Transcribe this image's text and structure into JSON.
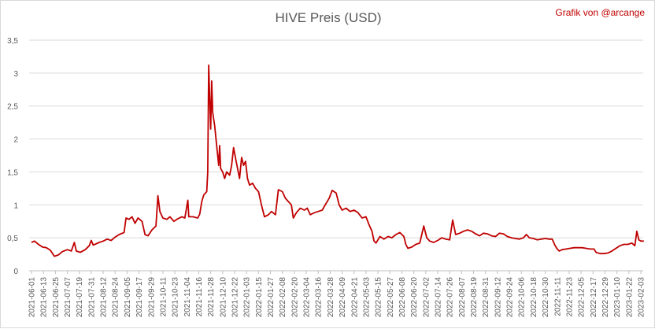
{
  "chart_data": {
    "type": "line",
    "title": "HIVE Preis (USD)",
    "credit": "Grafik von @arcange",
    "xlabel": "",
    "ylabel": "",
    "ylim": [
      0,
      3.5
    ],
    "yticks": [
      "0",
      "0,5",
      "1",
      "1,5",
      "2",
      "2,5",
      "3",
      "3,5"
    ],
    "yticks_values": [
      0,
      0.5,
      1,
      1.5,
      2,
      2.5,
      3,
      3.5
    ],
    "grid": true,
    "legend": "none",
    "x_tick_labels": [
      "2021-06-01",
      "2021-06-13",
      "2021-06-25",
      "2021-07-07",
      "2021-07-19",
      "2021-07-31",
      "2021-08-12",
      "2021-08-24",
      "2021-09-05",
      "2021-09-17",
      "2021-09-29",
      "2021-10-11",
      "2021-10-23",
      "2021-11-04",
      "2021-11-16",
      "2021-11-28",
      "2021-12-10",
      "2021-12-22",
      "2022-01-03",
      "2022-01-15",
      "2022-01-27",
      "2022-02-08",
      "2022-02-20",
      "2022-03-04",
      "2022-03-16",
      "2022-03-28",
      "2022-04-09",
      "2022-04-21",
      "2022-05-03",
      "2022-05-15",
      "2022-05-27",
      "2022-06-08",
      "2022-06-20",
      "2022-07-02",
      "2022-07-14",
      "2022-07-26",
      "2022-08-07",
      "2022-08-19",
      "2022-08-31",
      "2022-09-12",
      "2022-09-24",
      "2022-10-06",
      "2022-10-18",
      "2022-10-30",
      "2022-11-11",
      "2022-11-23",
      "2022-12-05",
      "2022-12-17",
      "2022-12-29",
      "2023-01-10",
      "2023-01-22",
      "2023-02-03"
    ],
    "series": [
      {
        "color": "#c00000",
        "points": [
          [
            "2021-06-01",
            0.43
          ],
          [
            "2021-06-04",
            0.45
          ],
          [
            "2021-06-08",
            0.4
          ],
          [
            "2021-06-12",
            0.36
          ],
          [
            "2021-06-16",
            0.35
          ],
          [
            "2021-06-20",
            0.31
          ],
          [
            "2021-06-24",
            0.22
          ],
          [
            "2021-06-28",
            0.24
          ],
          [
            "2021-07-02",
            0.29
          ],
          [
            "2021-07-07",
            0.32
          ],
          [
            "2021-07-11",
            0.3
          ],
          [
            "2021-07-14",
            0.43
          ],
          [
            "2021-07-16",
            0.3
          ],
          [
            "2021-07-20",
            0.28
          ],
          [
            "2021-07-25",
            0.32
          ],
          [
            "2021-07-29",
            0.38
          ],
          [
            "2021-07-31",
            0.46
          ],
          [
            "2021-08-02",
            0.39
          ],
          [
            "2021-08-08",
            0.43
          ],
          [
            "2021-08-12",
            0.45
          ],
          [
            "2021-08-16",
            0.48
          ],
          [
            "2021-08-20",
            0.46
          ],
          [
            "2021-08-24",
            0.51
          ],
          [
            "2021-08-28",
            0.55
          ],
          [
            "2021-09-02",
            0.58
          ],
          [
            "2021-09-04",
            0.8
          ],
          [
            "2021-09-07",
            0.78
          ],
          [
            "2021-09-10",
            0.82
          ],
          [
            "2021-09-13",
            0.72
          ],
          [
            "2021-09-16",
            0.8
          ],
          [
            "2021-09-20",
            0.75
          ],
          [
            "2021-09-23",
            0.55
          ],
          [
            "2021-09-26",
            0.53
          ],
          [
            "2021-09-30",
            0.62
          ],
          [
            "2021-10-04",
            0.68
          ],
          [
            "2021-10-06",
            1.14
          ],
          [
            "2021-10-08",
            0.9
          ],
          [
            "2021-10-11",
            0.8
          ],
          [
            "2021-10-15",
            0.78
          ],
          [
            "2021-10-18",
            0.82
          ],
          [
            "2021-10-22",
            0.75
          ],
          [
            "2021-10-26",
            0.79
          ],
          [
            "2021-10-30",
            0.82
          ],
          [
            "2021-11-02",
            0.8
          ],
          [
            "2021-11-05",
            1.07
          ],
          [
            "2021-11-06",
            0.82
          ],
          [
            "2021-11-10",
            0.82
          ],
          [
            "2021-11-15",
            0.8
          ],
          [
            "2021-11-17",
            0.86
          ],
          [
            "2021-11-19",
            1.05
          ],
          [
            "2021-11-21",
            1.15
          ],
          [
            "2021-11-24",
            1.2
          ],
          [
            "2021-11-25",
            1.5
          ],
          [
            "2021-11-26",
            3.12
          ],
          [
            "2021-11-27",
            2.6
          ],
          [
            "2021-11-28",
            2.15
          ],
          [
            "2021-11-29",
            2.88
          ],
          [
            "2021-11-30",
            2.4
          ],
          [
            "2021-12-02",
            2.2
          ],
          [
            "2021-12-04",
            1.9
          ],
          [
            "2021-12-06",
            1.6
          ],
          [
            "2021-12-07",
            1.9
          ],
          [
            "2021-12-08",
            1.55
          ],
          [
            "2021-12-10",
            1.5
          ],
          [
            "2021-12-12",
            1.4
          ],
          [
            "2021-12-14",
            1.5
          ],
          [
            "2021-12-17",
            1.45
          ],
          [
            "2021-12-19",
            1.6
          ],
          [
            "2021-12-21",
            1.87
          ],
          [
            "2021-12-23",
            1.7
          ],
          [
            "2021-12-25",
            1.55
          ],
          [
            "2021-12-27",
            1.4
          ],
          [
            "2021-12-29",
            1.72
          ],
          [
            "2021-12-31",
            1.6
          ],
          [
            "2022-01-02",
            1.66
          ],
          [
            "2022-01-04",
            1.4
          ],
          [
            "2022-01-06",
            1.3
          ],
          [
            "2022-01-09",
            1.33
          ],
          [
            "2022-01-12",
            1.25
          ],
          [
            "2022-01-15",
            1.2
          ],
          [
            "2022-01-18",
            1.0
          ],
          [
            "2022-01-21",
            0.82
          ],
          [
            "2022-01-25",
            0.85
          ],
          [
            "2022-01-28",
            0.9
          ],
          [
            "2022-02-01",
            0.85
          ],
          [
            "2022-02-04",
            1.23
          ],
          [
            "2022-02-08",
            1.2
          ],
          [
            "2022-02-11",
            1.1
          ],
          [
            "2022-02-14",
            1.05
          ],
          [
            "2022-02-17",
            1.0
          ],
          [
            "2022-02-19",
            0.8
          ],
          [
            "2022-02-22",
            0.88
          ],
          [
            "2022-02-26",
            0.95
          ],
          [
            "2022-03-02",
            0.92
          ],
          [
            "2022-03-05",
            0.95
          ],
          [
            "2022-03-08",
            0.85
          ],
          [
            "2022-03-12",
            0.88
          ],
          [
            "2022-03-16",
            0.9
          ],
          [
            "2022-03-20",
            0.92
          ],
          [
            "2022-03-23",
            1.0
          ],
          [
            "2022-03-27",
            1.1
          ],
          [
            "2022-03-30",
            1.22
          ],
          [
            "2022-04-03",
            1.18
          ],
          [
            "2022-04-06",
            1.0
          ],
          [
            "2022-04-09",
            0.92
          ],
          [
            "2022-04-13",
            0.95
          ],
          [
            "2022-04-17",
            0.9
          ],
          [
            "2022-04-21",
            0.92
          ],
          [
            "2022-04-25",
            0.88
          ],
          [
            "2022-04-29",
            0.8
          ],
          [
            "2022-05-03",
            0.82
          ],
          [
            "2022-05-06",
            0.7
          ],
          [
            "2022-05-09",
            0.6
          ],
          [
            "2022-05-11",
            0.45
          ],
          [
            "2022-05-13",
            0.42
          ],
          [
            "2022-05-17",
            0.52
          ],
          [
            "2022-05-21",
            0.48
          ],
          [
            "2022-05-25",
            0.52
          ],
          [
            "2022-05-29",
            0.5
          ],
          [
            "2022-06-02",
            0.55
          ],
          [
            "2022-06-06",
            0.58
          ],
          [
            "2022-06-10",
            0.52
          ],
          [
            "2022-06-12",
            0.4
          ],
          [
            "2022-06-14",
            0.34
          ],
          [
            "2022-06-18",
            0.36
          ],
          [
            "2022-06-22",
            0.4
          ],
          [
            "2022-06-26",
            0.42
          ],
          [
            "2022-06-30",
            0.68
          ],
          [
            "2022-07-03",
            0.5
          ],
          [
            "2022-07-06",
            0.45
          ],
          [
            "2022-07-10",
            0.43
          ],
          [
            "2022-07-14",
            0.46
          ],
          [
            "2022-07-18",
            0.5
          ],
          [
            "2022-07-22",
            0.48
          ],
          [
            "2022-07-26",
            0.47
          ],
          [
            "2022-07-29",
            0.77
          ],
          [
            "2022-08-01",
            0.55
          ],
          [
            "2022-08-05",
            0.57
          ],
          [
            "2022-08-09",
            0.6
          ],
          [
            "2022-08-13",
            0.62
          ],
          [
            "2022-08-17",
            0.6
          ],
          [
            "2022-08-21",
            0.56
          ],
          [
            "2022-08-25",
            0.53
          ],
          [
            "2022-08-29",
            0.57
          ],
          [
            "2022-09-02",
            0.56
          ],
          [
            "2022-09-06",
            0.53
          ],
          [
            "2022-09-10",
            0.52
          ],
          [
            "2022-09-14",
            0.57
          ],
          [
            "2022-09-18",
            0.56
          ],
          [
            "2022-09-22",
            0.52
          ],
          [
            "2022-09-26",
            0.5
          ],
          [
            "2022-09-30",
            0.49
          ],
          [
            "2022-10-04",
            0.48
          ],
          [
            "2022-10-08",
            0.5
          ],
          [
            "2022-10-11",
            0.55
          ],
          [
            "2022-10-14",
            0.5
          ],
          [
            "2022-10-18",
            0.49
          ],
          [
            "2022-10-22",
            0.47
          ],
          [
            "2022-10-26",
            0.48
          ],
          [
            "2022-10-30",
            0.49
          ],
          [
            "2022-11-03",
            0.48
          ],
          [
            "2022-11-06",
            0.48
          ],
          [
            "2022-11-09",
            0.38
          ],
          [
            "2022-11-11",
            0.33
          ],
          [
            "2022-11-13",
            0.3
          ],
          [
            "2022-11-16",
            0.32
          ],
          [
            "2022-11-20",
            0.33
          ],
          [
            "2022-11-24",
            0.34
          ],
          [
            "2022-11-28",
            0.35
          ],
          [
            "2022-12-02",
            0.35
          ],
          [
            "2022-12-06",
            0.35
          ],
          [
            "2022-12-10",
            0.34
          ],
          [
            "2022-12-14",
            0.33
          ],
          [
            "2022-12-18",
            0.33
          ],
          [
            "2022-12-20",
            0.28
          ],
          [
            "2022-12-24",
            0.26
          ],
          [
            "2022-12-28",
            0.26
          ],
          [
            "2023-01-01",
            0.27
          ],
          [
            "2023-01-05",
            0.3
          ],
          [
            "2023-01-09",
            0.34
          ],
          [
            "2023-01-13",
            0.38
          ],
          [
            "2023-01-17",
            0.4
          ],
          [
            "2023-01-21",
            0.4
          ],
          [
            "2023-01-25",
            0.42
          ],
          [
            "2023-01-28",
            0.38
          ],
          [
            "2023-01-30",
            0.6
          ],
          [
            "2023-02-01",
            0.47
          ],
          [
            "2023-02-03",
            0.45
          ],
          [
            "2023-02-06",
            0.45
          ]
        ]
      }
    ]
  }
}
